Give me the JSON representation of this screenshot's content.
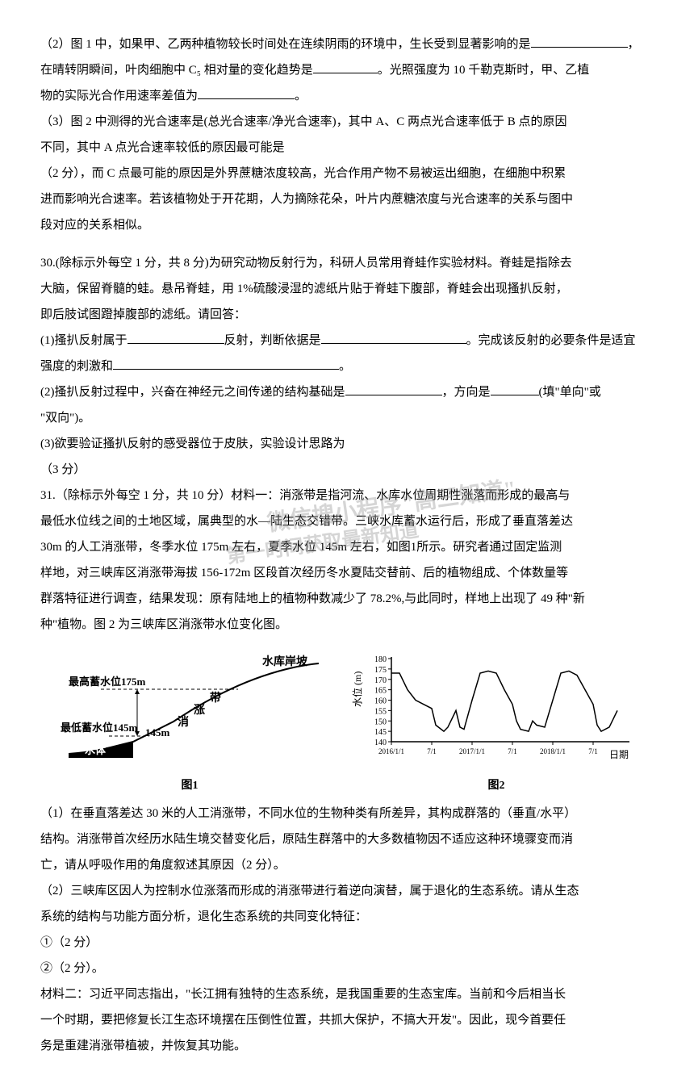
{
  "q29": {
    "part2_line1": "（2）图 1 中，如果甲、乙两种植物较长时间处在连续阴雨的环境中，生长受到显著影响的是",
    "part2_line2a": "在晴转阴瞬间，叶肉细胞中 C₅ 相对量的变化趋势是",
    "part2_line2b": "。光照强度为 10 千勒克斯时，甲、乙植",
    "part2_line3a": "物的实际光合作用速率差值为",
    "part2_line3b": "。",
    "part3_line1": "（3）图 2 中测得的光合速率是(总光合速率/净光合速率)，其中 A、C 两点光合速率低于 B 点的原因",
    "part3_line2": "不同，其中 A 点光合速率较低的原因最可能是",
    "part3_line3": "（2 分），而 C 点最可能的原因是外界蔗糖浓度较高，光合作用产物不易被运出细胞，在细胞中积累",
    "part3_line4": "进而影响光合速率。若该植物处于开花期，人为摘除花朵，叶片内蔗糖浓度与光合速率的关系与图中",
    "part3_line5": "段对应的关系相似。"
  },
  "q30": {
    "intro1": "30.(除标示外每空 1 分，共 8 分)为研究动物反射行为，科研人员常用脊蛙作实验材料。脊蛙是指除去",
    "intro2": "大脑，保留脊髓的蛙。悬吊脊蛙，用 1%硫酸浸湿的滤纸片贴于脊蛙下腹部，脊蛙会出现搔扒反射，",
    "intro3": "即后肢试图蹬掉腹部的滤纸。请回答：",
    "p1a": "(1)搔扒反射属于",
    "p1b": "反射，判断依据是",
    "p1c": "。完成该反射的必要条件是适宜",
    "p1d": "强度的刺激和",
    "p1e": "。",
    "p2a": "(2)搔扒反射过程中，兴奋在神经元之间传递的结构基础是",
    "p2b": "，方向是",
    "p2c": "(填\"单向\"或",
    "p2d": "\"双向\")。",
    "p3": "(3)欲要验证搔扒反射的感受器位于皮肤，实验设计思路为",
    "p3b": "（3 分）"
  },
  "q31": {
    "intro1": "31.（除标示外每空 1 分，共 10 分）材料一：消涨带是指河流、水库水位周期性涨落而形成的最高与",
    "intro2": "最低水位线之间的土地区域，属典型的水—陆生态交错带。三峡水库蓄水运行后，形成了垂直落差达",
    "intro3": "30m 的人工消涨带，冬季水位 175m 左右，夏季水位 145m 左右，如图1所示。研究者通过固定监测",
    "intro4": "样地，对三峡库区消涨带海拔 156-172m 区段首次经历冬水夏陆交替前、后的植物组成、个体数量等",
    "intro5": "群落特征进行调查，结果发现：原有陆地上的植物种数减少了 78.2%,与此同时，样地上出现了 49 种\"新",
    "intro6": "种\"植物。图 2 为三峡库区消涨带水位变化图。",
    "p1a": "（1）在垂直落差达 30 米的人工消涨带，不同水位的生物种类有所差异，其构成群落的（垂直/水平）",
    "p1b": "结构。消涨带首次经历水陆生境交替变化后，原陆生群落中的大多数植物因不适应这种环境骤变而消",
    "p1c": "亡，请从呼吸作用的角度叙述其原因（2 分）。",
    "p2a": "（2）三峡库区因人为控制水位涨落而形成的消涨带进行着逆向演替，属于退化的生态系统。请从生态",
    "p2b": "系统的结构与功能方面分析，退化生态系统的共同变化特征：",
    "c1": "①（2 分）",
    "c2": "②（2 分）。",
    "mat2a": "材料二：习近平同志指出，\"长江拥有独特的生态系统，是我国重要的生态宝库。当前和今后相当长",
    "mat2b": "一个时期，要把修复长江生态环境摆在压倒性位置，共抓大保护，不搞大开发\"。因此，现今首要任",
    "mat2c": "务是重建消涨带植被，并恢复其功能。"
  },
  "figures": {
    "fig1_label": "图1",
    "fig2_label": "图2",
    "fig1": {
      "label_high": "最高蓄水位175m",
      "label_low": "最低蓄水位145m",
      "label_water": "水体",
      "label_cons": "消",
      "label_rise": "涨",
      "label_band": "带",
      "label_bank": "水库岸坡",
      "curve_color": "#000000",
      "fill_color": "#000000"
    },
    "fig2": {
      "ylabel": "水位 (m)",
      "xlabel": "日期",
      "ylim": [
        140,
        180
      ],
      "yticks": [
        140,
        145,
        150,
        155,
        160,
        165,
        170,
        175,
        180
      ],
      "xticks": [
        "2016/1/1",
        "7/1",
        "2017/1/1",
        "7/1",
        "2018/1/1",
        "7/1"
      ],
      "line_color": "#000000",
      "data": [
        [
          0,
          173
        ],
        [
          10,
          173
        ],
        [
          20,
          165
        ],
        [
          30,
          160
        ],
        [
          40,
          158
        ],
        [
          50,
          156
        ],
        [
          55,
          148
        ],
        [
          65,
          145
        ],
        [
          70,
          147
        ],
        [
          80,
          155
        ],
        [
          85,
          147
        ],
        [
          90,
          146
        ],
        [
          100,
          160
        ],
        [
          110,
          173
        ],
        [
          120,
          174
        ],
        [
          130,
          173
        ],
        [
          140,
          165
        ],
        [
          150,
          158
        ],
        [
          155,
          150
        ],
        [
          160,
          146
        ],
        [
          170,
          145
        ],
        [
          175,
          150
        ],
        [
          180,
          148
        ],
        [
          190,
          147
        ],
        [
          200,
          160
        ],
        [
          210,
          173
        ],
        [
          220,
          174
        ],
        [
          230,
          172
        ],
        [
          240,
          165
        ],
        [
          250,
          158
        ],
        [
          255,
          148
        ],
        [
          260,
          145
        ],
        [
          270,
          147
        ],
        [
          280,
          155
        ]
      ]
    }
  },
  "watermark": {
    "line1": "微信搜小程序\"高三知道\"",
    "line2": "第一时间获取最新知道"
  },
  "colors": {
    "text": "#000000",
    "background": "#ffffff",
    "watermark": "#999999"
  }
}
